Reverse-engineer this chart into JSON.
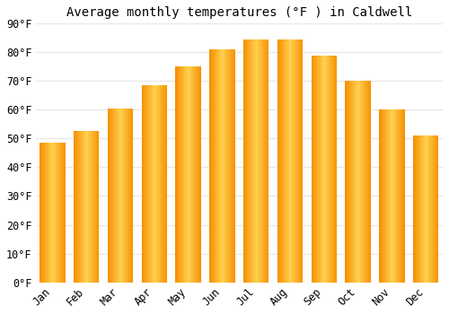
{
  "title": "Average monthly temperatures (°F ) in Caldwell",
  "months": [
    "Jan",
    "Feb",
    "Mar",
    "Apr",
    "May",
    "Jun",
    "Jul",
    "Aug",
    "Sep",
    "Oct",
    "Nov",
    "Dec"
  ],
  "values": [
    48.5,
    52.5,
    60.5,
    68.5,
    75,
    81,
    84.5,
    84.5,
    79,
    70,
    60,
    51
  ],
  "bar_color_center": "#FFB700",
  "bar_color_edge": "#F59500",
  "ylim": [
    0,
    90
  ],
  "yticks": [
    0,
    10,
    20,
    30,
    40,
    50,
    60,
    70,
    80,
    90
  ],
  "ytick_labels": [
    "0°F",
    "10°F",
    "20°F",
    "30°F",
    "40°F",
    "50°F",
    "60°F",
    "70°F",
    "80°F",
    "90°F"
  ],
  "background_color": "#ffffff",
  "grid_color": "#e8e8e8",
  "title_fontsize": 10,
  "tick_fontsize": 8.5,
  "bar_width": 0.75
}
